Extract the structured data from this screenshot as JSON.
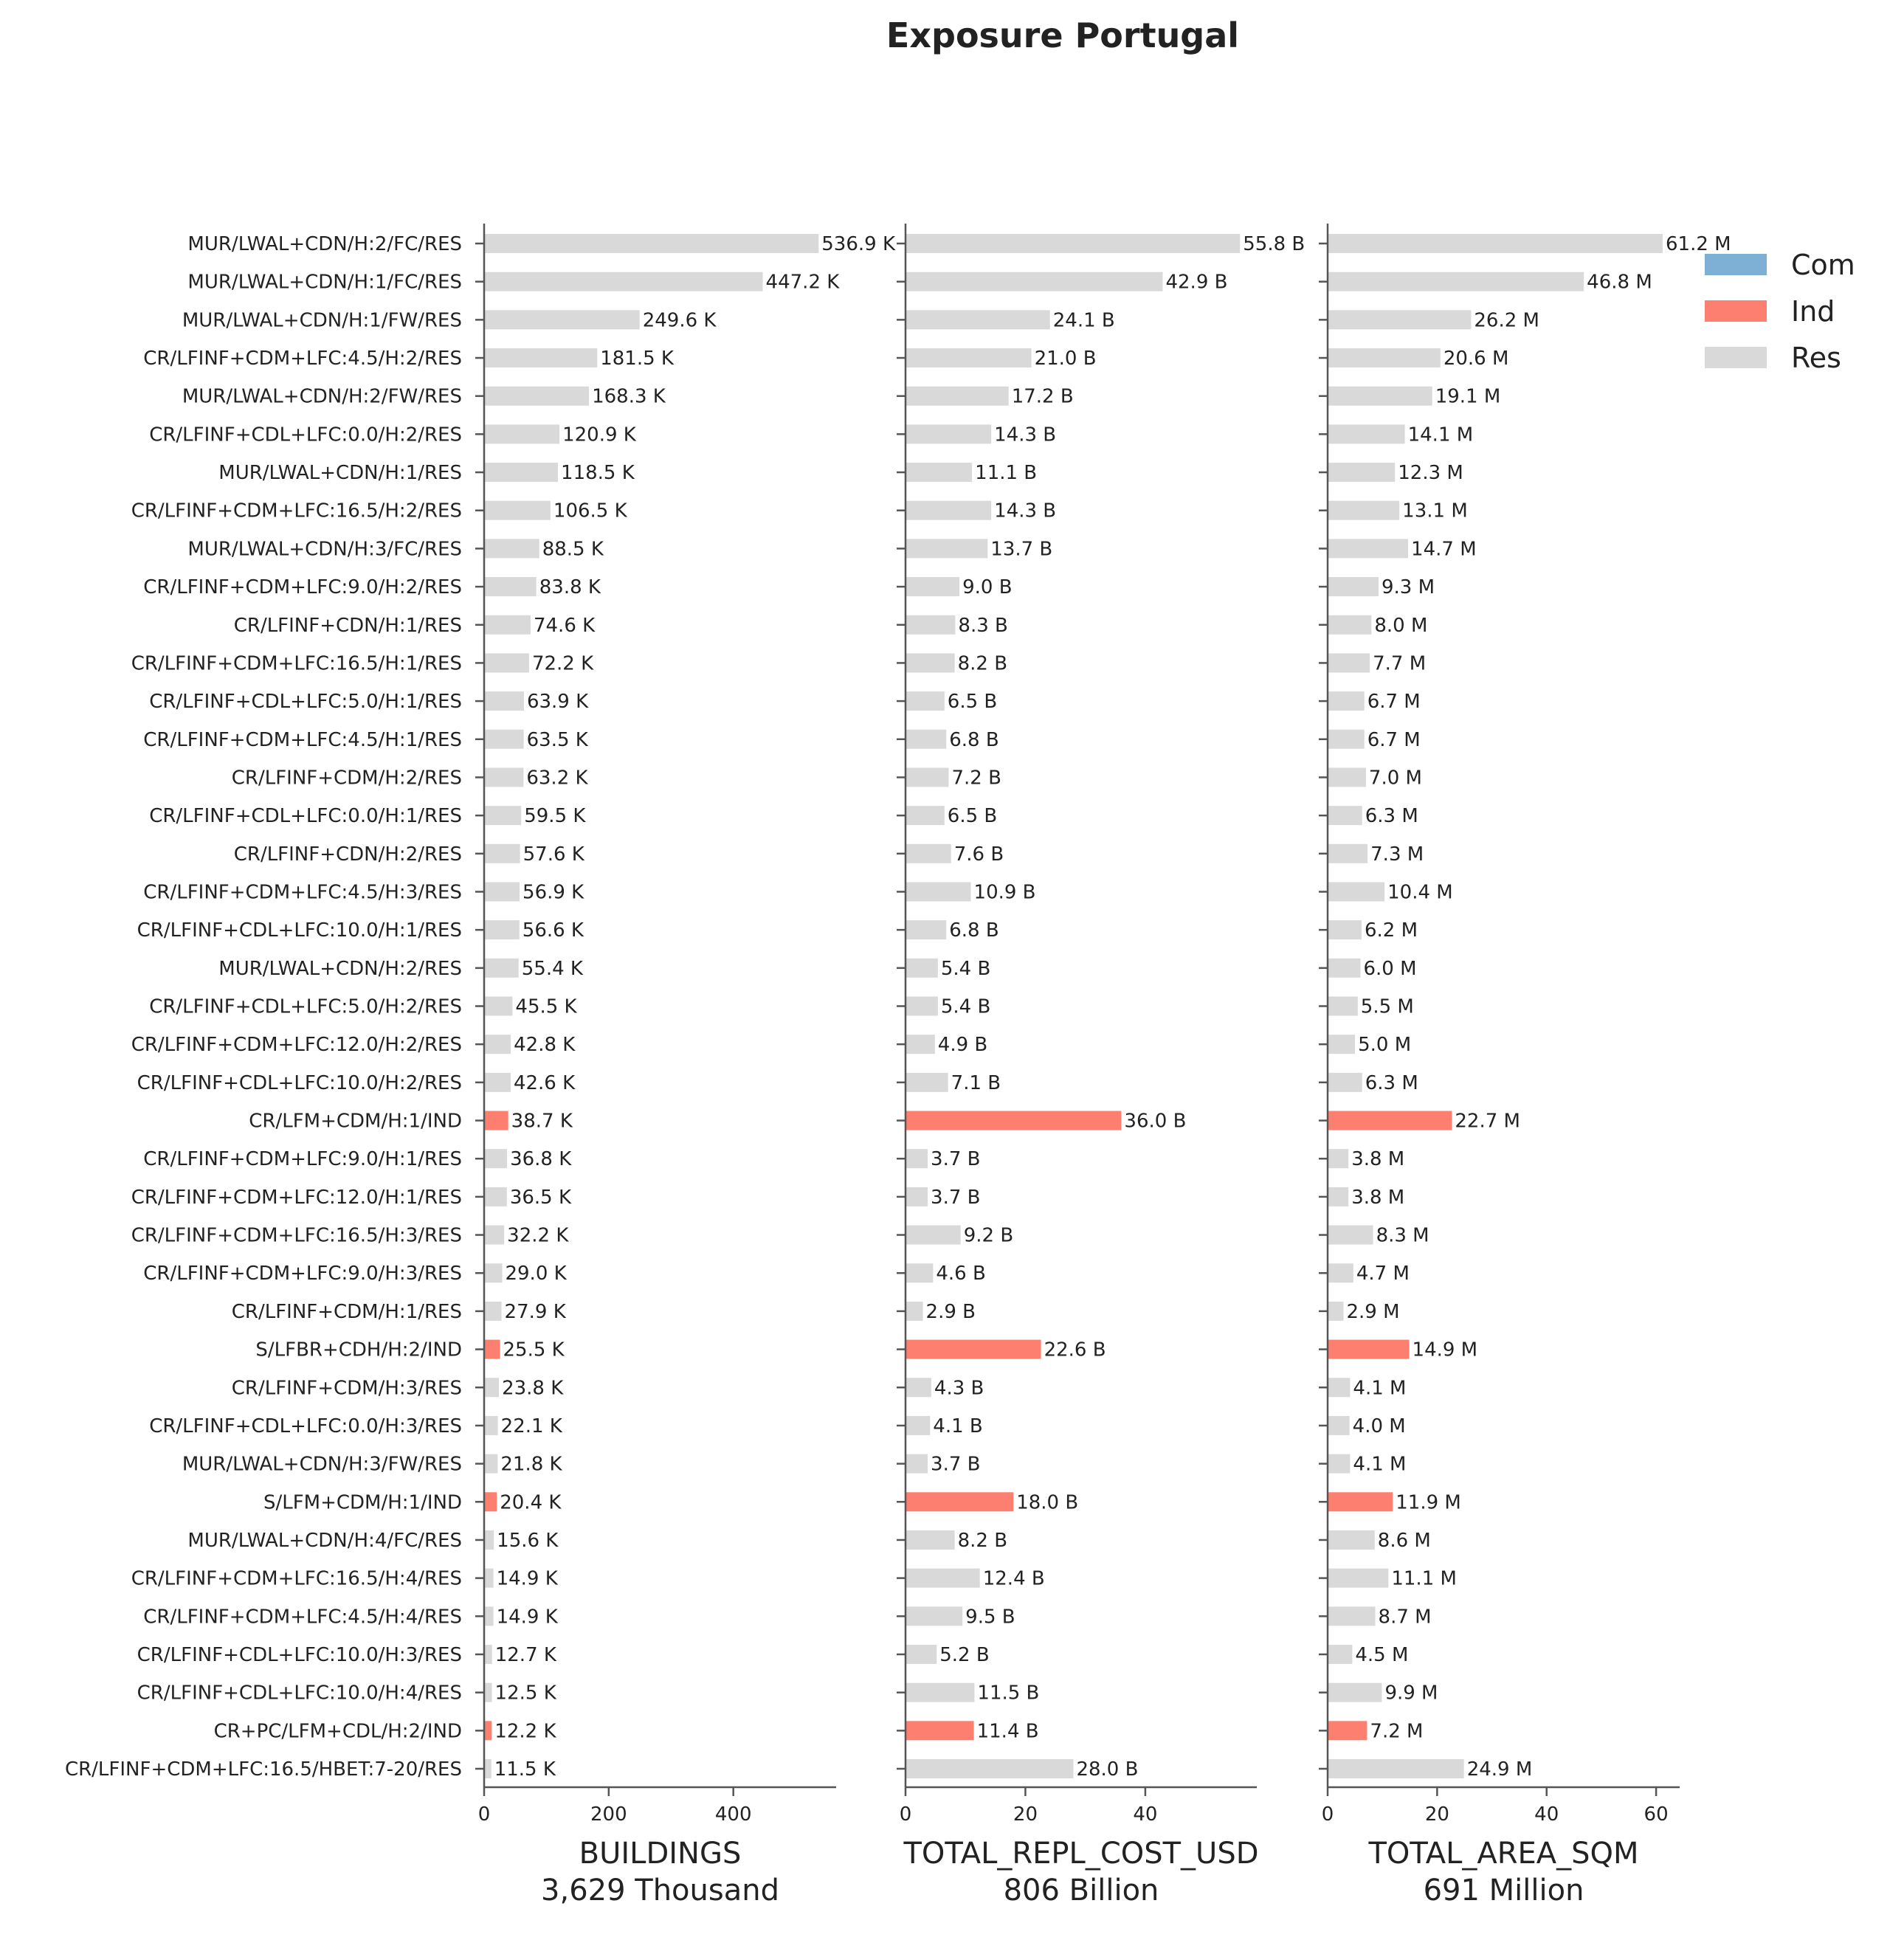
{
  "chart_data": {
    "type": "bar",
    "orientation": "horizontal",
    "title": "Exposure Portugal",
    "categories": [
      "MUR/LWAL+CDN/H:2/FC/RES",
      "MUR/LWAL+CDN/H:1/FC/RES",
      "MUR/LWAL+CDN/H:1/FW/RES",
      "CR/LFINF+CDM+LFC:4.5/H:2/RES",
      "MUR/LWAL+CDN/H:2/FW/RES",
      "CR/LFINF+CDL+LFC:0.0/H:2/RES",
      "MUR/LWAL+CDN/H:1/RES",
      "CR/LFINF+CDM+LFC:16.5/H:2/RES",
      "MUR/LWAL+CDN/H:3/FC/RES",
      "CR/LFINF+CDM+LFC:9.0/H:2/RES",
      "CR/LFINF+CDN/H:1/RES",
      "CR/LFINF+CDM+LFC:16.5/H:1/RES",
      "CR/LFINF+CDL+LFC:5.0/H:1/RES",
      "CR/LFINF+CDM+LFC:4.5/H:1/RES",
      "CR/LFINF+CDM/H:2/RES",
      "CR/LFINF+CDL+LFC:0.0/H:1/RES",
      "CR/LFINF+CDN/H:2/RES",
      "CR/LFINF+CDM+LFC:4.5/H:3/RES",
      "CR/LFINF+CDL+LFC:10.0/H:1/RES",
      "MUR/LWAL+CDN/H:2/RES",
      "CR/LFINF+CDL+LFC:5.0/H:2/RES",
      "CR/LFINF+CDM+LFC:12.0/H:2/RES",
      "CR/LFINF+CDL+LFC:10.0/H:2/RES",
      "CR/LFM+CDM/H:1/IND",
      "CR/LFINF+CDM+LFC:9.0/H:1/RES",
      "CR/LFINF+CDM+LFC:12.0/H:1/RES",
      "CR/LFINF+CDM+LFC:16.5/H:3/RES",
      "CR/LFINF+CDM+LFC:9.0/H:3/RES",
      "CR/LFINF+CDM/H:1/RES",
      "S/LFBR+CDH/H:2/IND",
      "CR/LFINF+CDM/H:3/RES",
      "CR/LFINF+CDL+LFC:0.0/H:3/RES",
      "MUR/LWAL+CDN/H:3/FW/RES",
      "S/LFM+CDM/H:1/IND",
      "MUR/LWAL+CDN/H:4/FC/RES",
      "CR/LFINF+CDM+LFC:16.5/H:4/RES",
      "CR/LFINF+CDM+LFC:4.5/H:4/RES",
      "CR/LFINF+CDL+LFC:10.0/H:3/RES",
      "CR/LFINF+CDL+LFC:10.0/H:4/RES",
      "CR+PC/LFM+CDL/H:2/IND",
      "CR/LFINF+CDM+LFC:16.5/HBET:7-20/RES"
    ],
    "occupancy": [
      "Res",
      "Res",
      "Res",
      "Res",
      "Res",
      "Res",
      "Res",
      "Res",
      "Res",
      "Res",
      "Res",
      "Res",
      "Res",
      "Res",
      "Res",
      "Res",
      "Res",
      "Res",
      "Res",
      "Res",
      "Res",
      "Res",
      "Res",
      "Ind",
      "Res",
      "Res",
      "Res",
      "Res",
      "Res",
      "Ind",
      "Res",
      "Res",
      "Res",
      "Ind",
      "Res",
      "Res",
      "Res",
      "Res",
      "Res",
      "Ind",
      "Res"
    ],
    "legend": {
      "position": "top-right",
      "entries": [
        {
          "name": "Com",
          "color": "#7eb0d5"
        },
        {
          "name": "Ind",
          "color": "#fd7f6f"
        },
        {
          "name": "Res",
          "color": "#d9d9d9"
        }
      ]
    },
    "panels": [
      {
        "xlabel": "BUILDINGS",
        "total": "3,629 Thousand",
        "xlim": [
          0,
          565
        ],
        "xticks": [
          0,
          200,
          400
        ],
        "values": [
          536.9,
          447.2,
          249.6,
          181.5,
          168.3,
          120.9,
          118.5,
          106.5,
          88.5,
          83.8,
          74.6,
          72.2,
          63.9,
          63.5,
          63.2,
          59.5,
          57.6,
          56.9,
          56.6,
          55.4,
          45.5,
          42.8,
          42.6,
          38.7,
          36.8,
          36.5,
          32.2,
          29.0,
          27.9,
          25.5,
          23.8,
          22.1,
          21.8,
          20.4,
          15.6,
          14.9,
          14.9,
          12.7,
          12.5,
          12.2,
          11.5
        ],
        "labels": [
          "536.9 K",
          "447.2 K",
          "249.6 K",
          "181.5 K",
          "168.3 K",
          "120.9 K",
          "118.5 K",
          "106.5 K",
          "88.5 K",
          "83.8 K",
          "74.6 K",
          "72.2 K",
          "63.9 K",
          "63.5 K",
          "63.2 K",
          "59.5 K",
          "57.6 K",
          "56.9 K",
          "56.6 K",
          "55.4 K",
          "45.5 K",
          "42.8 K",
          "42.6 K",
          "38.7 K",
          "36.8 K",
          "36.5 K",
          "32.2 K",
          "29.0 K",
          "27.9 K",
          "25.5 K",
          "23.8 K",
          "22.1 K",
          "21.8 K",
          "20.4 K",
          "15.6 K",
          "14.9 K",
          "14.9 K",
          "12.7 K",
          "12.5 K",
          "12.2 K",
          "11.5 K"
        ]
      },
      {
        "xlabel": "TOTAL_REPL_COST_USD",
        "total": "806 Billion",
        "xlim": [
          0,
          58.6
        ],
        "xticks": [
          0,
          20,
          40
        ],
        "values": [
          55.8,
          42.9,
          24.1,
          21.0,
          17.2,
          14.3,
          11.1,
          14.3,
          13.7,
          9.0,
          8.3,
          8.2,
          6.5,
          6.8,
          7.2,
          6.5,
          7.6,
          10.9,
          6.8,
          5.4,
          5.4,
          4.9,
          7.1,
          36.0,
          3.7,
          3.7,
          9.2,
          4.6,
          2.9,
          22.6,
          4.3,
          4.1,
          3.7,
          18.0,
          8.2,
          12.4,
          9.5,
          5.2,
          11.5,
          11.4,
          28.0
        ],
        "labels": [
          "55.8 B",
          "42.9 B",
          "24.1 B",
          "21.0 B",
          "17.2 B",
          "14.3 B",
          "11.1 B",
          "14.3 B",
          "13.7 B",
          "9.0 B",
          "8.3 B",
          "8.2 B",
          "6.5 B",
          "6.8 B",
          "7.2 B",
          "6.5 B",
          "7.6 B",
          "10.9 B",
          "6.8 B",
          "5.4 B",
          "5.4 B",
          "4.9 B",
          "7.1 B",
          "36.0 B",
          "3.7 B",
          "3.7 B",
          "9.2 B",
          "4.6 B",
          "2.9 B",
          "22.6 B",
          "4.3 B",
          "4.1 B",
          "3.7 B",
          "18.0 B",
          "8.2 B",
          "12.4 B",
          "9.5 B",
          "5.2 B",
          "11.5 B",
          "11.4 B",
          "28.0 B"
        ]
      },
      {
        "xlabel": "TOTAL_AREA_SQM",
        "total": "691 Million",
        "xlim": [
          0,
          64.3
        ],
        "xticks": [
          0,
          20,
          40,
          60
        ],
        "values": [
          61.2,
          46.8,
          26.2,
          20.6,
          19.1,
          14.1,
          12.3,
          13.1,
          14.7,
          9.3,
          8.0,
          7.7,
          6.7,
          6.7,
          7.0,
          6.3,
          7.3,
          10.4,
          6.2,
          6.0,
          5.5,
          5.0,
          6.3,
          22.7,
          3.8,
          3.8,
          8.3,
          4.7,
          2.9,
          14.9,
          4.1,
          4.0,
          4.1,
          11.9,
          8.6,
          11.1,
          8.7,
          4.5,
          9.9,
          7.2,
          24.9
        ],
        "labels": [
          "61.2 M",
          "46.8 M",
          "26.2 M",
          "20.6 M",
          "19.1 M",
          "14.1 M",
          "12.3 M",
          "13.1 M",
          "14.7 M",
          "9.3 M",
          "8.0 M",
          "7.7 M",
          "6.7 M",
          "6.7 M",
          "7.0 M",
          "6.3 M",
          "7.3 M",
          "10.4 M",
          "6.2 M",
          "6.0 M",
          "5.5 M",
          "5.0 M",
          "6.3 M",
          "22.7 M",
          "3.8 M",
          "3.8 M",
          "8.3 M",
          "4.7 M",
          "2.9 M",
          "14.9 M",
          "4.1 M",
          "4.0 M",
          "4.1 M",
          "11.9 M",
          "8.6 M",
          "11.1 M",
          "8.7 M",
          "4.5 M",
          "9.9 M",
          "7.2 M",
          "24.9 M"
        ]
      }
    ]
  }
}
